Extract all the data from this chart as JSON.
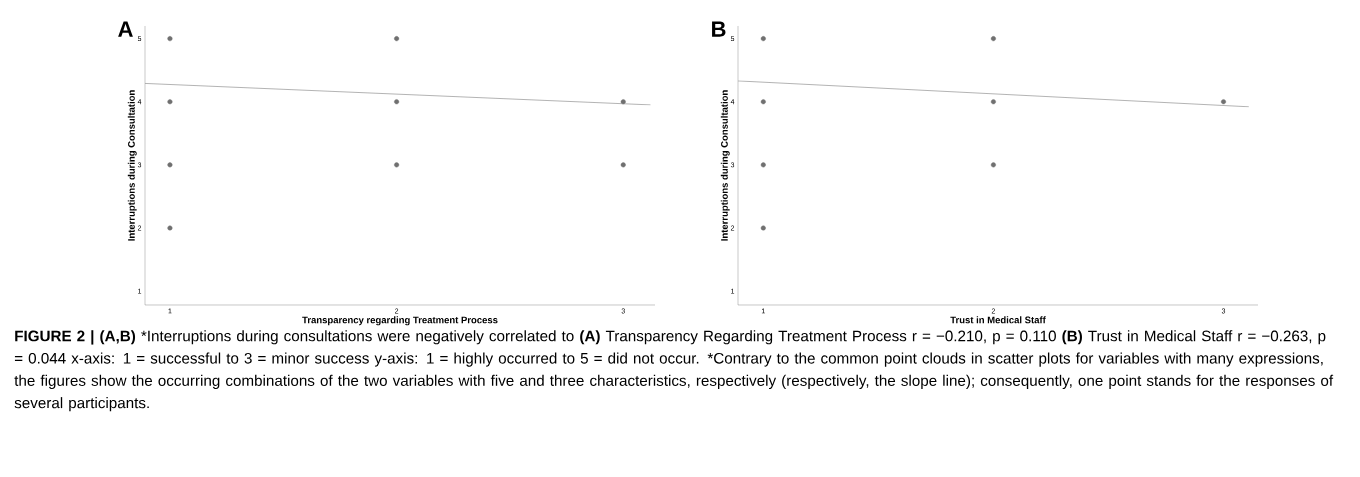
{
  "chart_data": [
    {
      "type": "scatter",
      "title": "A",
      "xlabel": "Transparency regarding Treatment Process",
      "ylabel": "Interruptions during Consultation",
      "marker": "circle",
      "xlim": [
        0.89,
        3.14
      ],
      "ylim": [
        0.78,
        5.2
      ],
      "xticks": [
        1,
        2,
        3
      ],
      "yticks": [
        1,
        2,
        3,
        4,
        5
      ],
      "series": [
        {
          "color": "#707070",
          "x": [
            1,
            1,
            1,
            1,
            2,
            2,
            2,
            3,
            3
          ],
          "values": [
            5,
            4,
            3,
            2,
            5,
            4,
            3,
            4,
            3
          ]
        },
        {
          "type": "line",
          "marker": "none",
          "color": "#a0a0a0",
          "x": [
            0.89,
            3.12
          ],
          "values": [
            4.29,
            3.95
          ]
        }
      ],
      "annotations": [
        "**FIGURE 2 | (A,B)** *Interruptions during consultations were negatively correlated to **(A)** Transparency Regarding Treatment Process r = −0.210, p = 0.110 **(B)** Trust in Medical Staff r = −0.263, p = 0.044 x-axis: 1 = successful to 3 = minor success y-axis: 1 = highly occurred to 5 = did not occur.",
        "*Contrary to the common point clouds in scatter plots for variables with many expressions, the figures show the occurring combinations of the two variables with five and three characteristics, respectively (respectively, the slope line); consequently, one point stands for the responses of several participants."
      ]
    },
    {
      "type": "scatter",
      "title": "B",
      "xlabel": "Trust in Medical Staff",
      "ylabel": "Interruptions during Consultation",
      "marker": "circle",
      "xlim": [
        0.89,
        3.15
      ],
      "ylim": [
        0.78,
        5.2
      ],
      "xticks": [
        1,
        2,
        3
      ],
      "yticks": [
        1,
        2,
        3,
        4,
        5
      ],
      "series": [
        {
          "color": "#707070",
          "x": [
            1,
            1,
            1,
            1,
            2,
            2,
            2,
            3
          ],
          "values": [
            5,
            4,
            3,
            2,
            5,
            4,
            3,
            4
          ]
        },
        {
          "type": "line",
          "marker": "none",
          "color": "#a0a0a0",
          "x": [
            0.89,
            3.11
          ],
          "values": [
            4.33,
            3.92
          ]
        }
      ]
    }
  ]
}
